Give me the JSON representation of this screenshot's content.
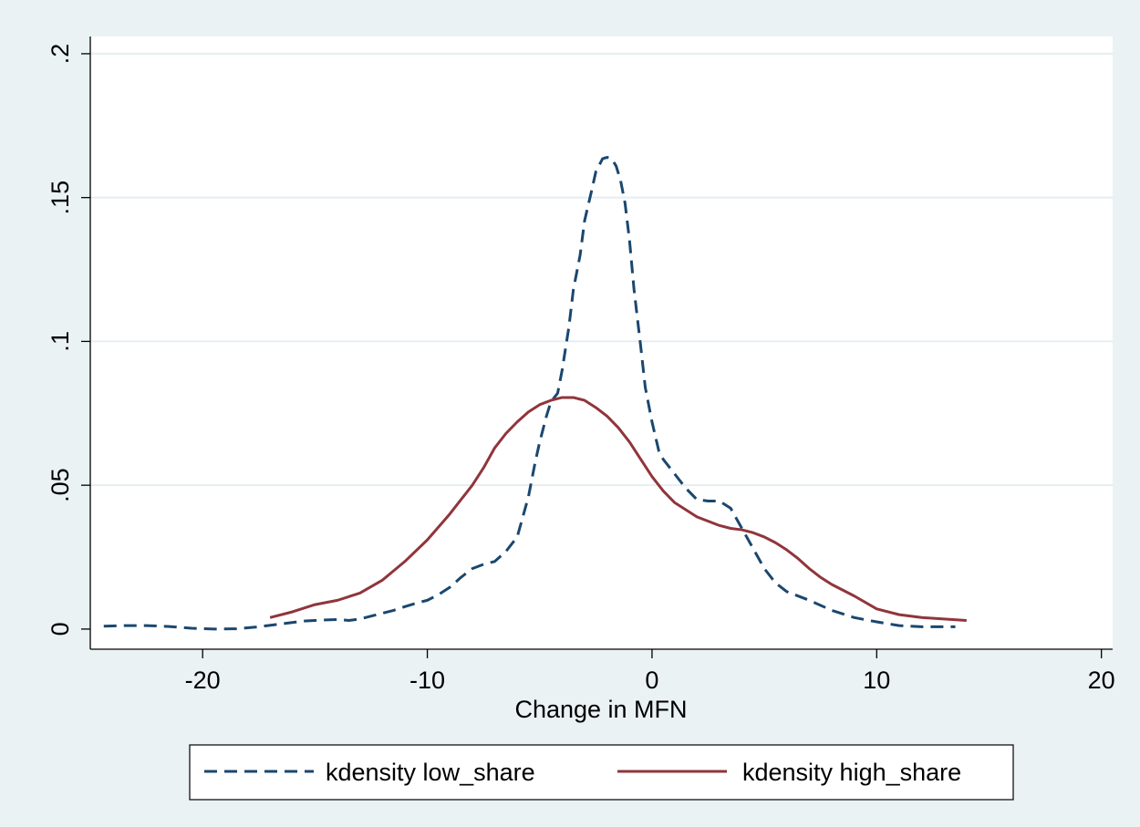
{
  "chart_data": {
    "type": "line",
    "title": "",
    "xlabel": "Change in MFN",
    "ylabel": "",
    "xlim": [
      -25,
      20.5
    ],
    "ylim": [
      -0.007,
      0.206
    ],
    "x_ticks": [
      -20,
      -10,
      0,
      10,
      20
    ],
    "x_tick_labels": [
      "-20",
      "-10",
      "0",
      "10",
      "20"
    ],
    "y_ticks": [
      0,
      0.05,
      0.1,
      0.15,
      0.2
    ],
    "y_tick_labels": [
      "0",
      ".05",
      ".1",
      ".15",
      ".2"
    ],
    "grid": "horizontal",
    "legend_position": "bottom",
    "colors": {
      "outer_background": "#eaf2f3",
      "plot_background": "#ffffff",
      "grid": "#e6eef0",
      "low_share": "#1a476f",
      "high_share": "#90353b"
    },
    "series": [
      {
        "name": "kdensity low_share",
        "style": "dashed",
        "color": "#1a476f",
        "x": [
          -24.4,
          -23.5,
          -22.5,
          -21.5,
          -20.5,
          -19.5,
          -18.5,
          -17.5,
          -16.5,
          -15.5,
          -14.5,
          -14.0,
          -13.5,
          -13.0,
          -12.5,
          -12.0,
          -11.5,
          -11.0,
          -10.5,
          -10.0,
          -9.5,
          -9.0,
          -8.5,
          -8.0,
          -7.5,
          -7.0,
          -6.5,
          -6.0,
          -5.5,
          -5.2,
          -5.0,
          -4.7,
          -4.5,
          -4.2,
          -4.0,
          -3.7,
          -3.5,
          -3.2,
          -3.0,
          -2.7,
          -2.5,
          -2.2,
          -2.0,
          -1.8,
          -1.6,
          -1.4,
          -1.2,
          -1.0,
          -0.8,
          -0.5,
          -0.3,
          0.0,
          0.3,
          0.5,
          1.0,
          1.5,
          2.0,
          2.5,
          3.0,
          3.5,
          4.0,
          4.5,
          5.0,
          5.5,
          6.0,
          7.0,
          8.0,
          9.0,
          10.0,
          11.0,
          12.0,
          13.0,
          13.5
        ],
        "y": [
          0.001,
          0.0012,
          0.0012,
          0.0009,
          0.0003,
          0.0,
          0.0001,
          0.0008,
          0.0018,
          0.0028,
          0.0032,
          0.0033,
          0.003,
          0.0035,
          0.0045,
          0.0055,
          0.0065,
          0.0078,
          0.009,
          0.01,
          0.012,
          0.0145,
          0.018,
          0.021,
          0.0225,
          0.0235,
          0.027,
          0.032,
          0.046,
          0.058,
          0.065,
          0.074,
          0.079,
          0.082,
          0.09,
          0.105,
          0.118,
          0.13,
          0.142,
          0.152,
          0.159,
          0.1635,
          0.164,
          0.1635,
          0.161,
          0.156,
          0.148,
          0.135,
          0.118,
          0.098,
          0.084,
          0.072,
          0.062,
          0.059,
          0.054,
          0.049,
          0.045,
          0.0445,
          0.0445,
          0.042,
          0.035,
          0.028,
          0.021,
          0.016,
          0.013,
          0.01,
          0.0065,
          0.004,
          0.0025,
          0.0012,
          0.0008,
          0.0008,
          0.0008
        ]
      },
      {
        "name": "kdensity high_share",
        "style": "solid",
        "color": "#90353b",
        "x": [
          -17.0,
          -16.0,
          -15.0,
          -14.0,
          -13.0,
          -12.0,
          -11.0,
          -10.0,
          -9.0,
          -8.0,
          -7.5,
          -7.0,
          -6.5,
          -6.0,
          -5.5,
          -5.0,
          -4.5,
          -4.0,
          -3.5,
          -3.0,
          -2.5,
          -2.0,
          -1.5,
          -1.0,
          -0.5,
          0.0,
          0.5,
          1.0,
          1.5,
          2.0,
          2.5,
          3.0,
          3.5,
          4.0,
          4.5,
          5.0,
          5.5,
          6.0,
          6.5,
          7.0,
          7.5,
          8.0,
          9.0,
          10.0,
          11.0,
          12.0,
          13.0,
          14.0
        ],
        "y": [
          0.004,
          0.006,
          0.0085,
          0.01,
          0.0125,
          0.017,
          0.0235,
          0.031,
          0.04,
          0.05,
          0.056,
          0.063,
          0.068,
          0.072,
          0.0755,
          0.078,
          0.0795,
          0.0805,
          0.0805,
          0.0795,
          0.077,
          0.074,
          0.07,
          0.065,
          0.059,
          0.053,
          0.048,
          0.044,
          0.0415,
          0.039,
          0.0375,
          0.036,
          0.035,
          0.0345,
          0.0335,
          0.032,
          0.03,
          0.0275,
          0.0245,
          0.021,
          0.018,
          0.0155,
          0.0115,
          0.007,
          0.005,
          0.004,
          0.0035,
          0.003
        ]
      }
    ]
  }
}
